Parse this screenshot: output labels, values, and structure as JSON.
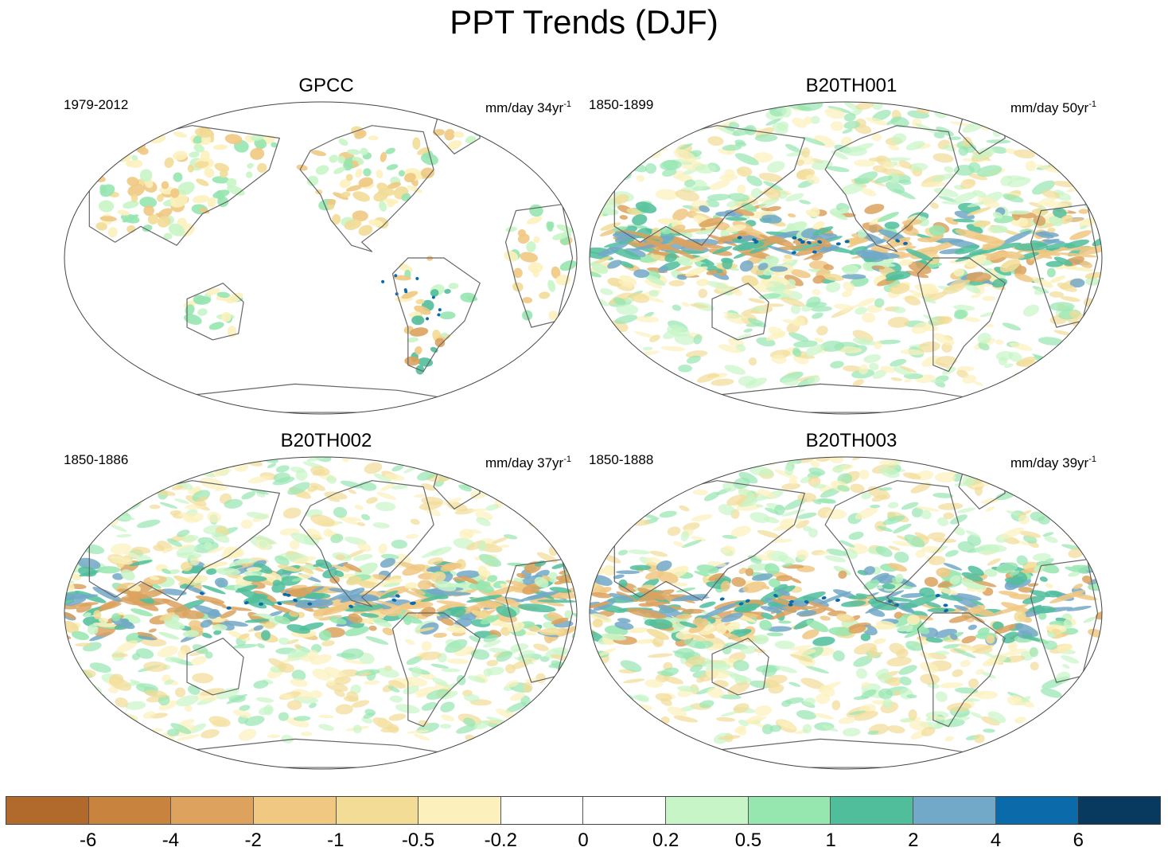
{
  "title": "PPT Trends (DJF)",
  "panels": [
    {
      "name": "GPCC",
      "period": "1979-2012",
      "units": "mm/day 34yr",
      "units_exp": "-1",
      "pattern": "obs"
    },
    {
      "name": "B20TH001",
      "period": "1850-1899",
      "units": "mm/day 50yr",
      "units_exp": "-1",
      "pattern": "model1"
    },
    {
      "name": "B20TH002",
      "period": "1850-1886",
      "units": "mm/day 37yr",
      "units_exp": "-1",
      "pattern": "model2"
    },
    {
      "name": "B20TH003",
      "period": "1850-1888",
      "units": "mm/day 39yr",
      "units_exp": "-1",
      "pattern": "model3"
    }
  ],
  "colorbar": {
    "colors": [
      "#b2692c",
      "#c8843e",
      "#dca25e",
      "#f0c882",
      "#f2dc96",
      "#fcf1bc",
      "#ffffff",
      "#ffffff",
      "#c8f5c8",
      "#96e6b0",
      "#50be9b",
      "#72a8c8",
      "#0a6aaa",
      "#073a5e"
    ],
    "labels": [
      "-6",
      "-4",
      "-2",
      "-1",
      "-0.5",
      "-0.2",
      "0",
      "0.2",
      "0.5",
      "1",
      "2",
      "4",
      "6"
    ]
  },
  "map_style": {
    "ocean": "#ffffff",
    "coast": "#666666",
    "outline": "#444444"
  }
}
